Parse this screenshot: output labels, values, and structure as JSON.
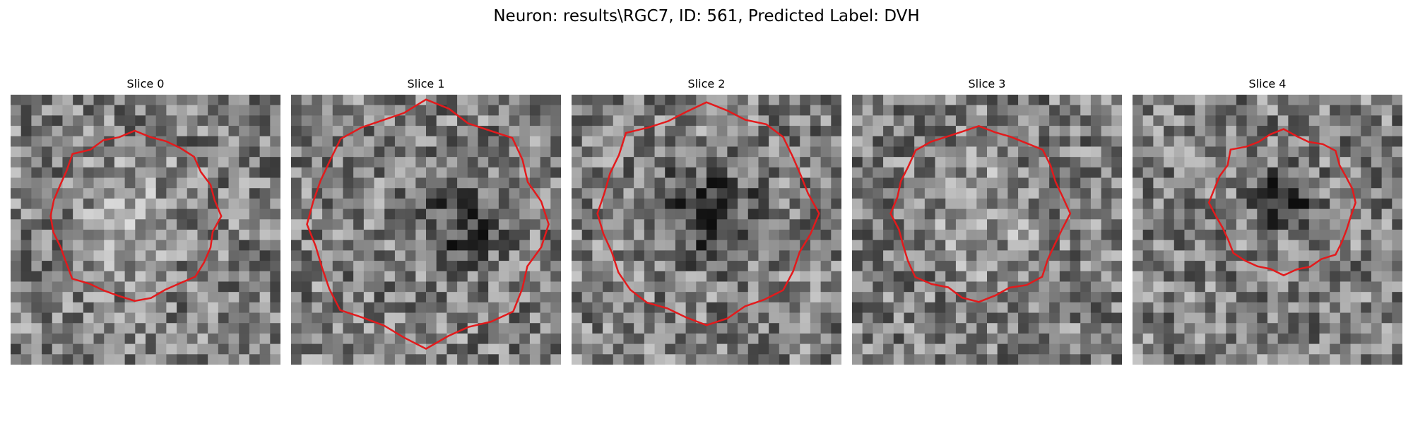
{
  "figure": {
    "title": "Neuron: results\\RGC7, ID: 561, Predicted Label: DVH"
  },
  "panels": [
    {
      "title": "Slice 0",
      "contour_color": "#e31a1c",
      "seed": 11,
      "center": [
        0.46,
        0.45
      ],
      "radius": 0.32,
      "inner_tone": "bright"
    },
    {
      "title": "Slice 1",
      "contour_color": "#e31a1c",
      "seed": 27,
      "center": [
        0.5,
        0.48
      ],
      "radius": 0.45,
      "inner_tone": "dark-right"
    },
    {
      "title": "Slice 2",
      "contour_color": "#e31a1c",
      "seed": 43,
      "center": [
        0.5,
        0.44
      ],
      "radius": 0.41,
      "inner_tone": "dark-center"
    },
    {
      "title": "Slice 3",
      "contour_color": "#e31a1c",
      "seed": 59,
      "center": [
        0.47,
        0.44
      ],
      "radius": 0.33,
      "inner_tone": "bright"
    },
    {
      "title": "Slice 4",
      "contour_color": "#e31a1c",
      "seed": 71,
      "center": [
        0.56,
        0.4
      ],
      "radius": 0.27,
      "inner_tone": "dark-center"
    }
  ]
}
